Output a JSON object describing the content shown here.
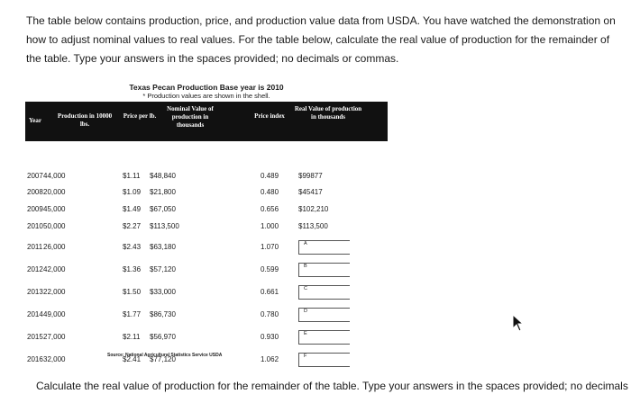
{
  "intro": {
    "line1": "The table below contains production, price, and production value data from USDA. You have watched the demonstration on",
    "line2": "how to adjust nominal values to real values.  For the table below, calculate the real value of production for the remainder of",
    "line3": "the table. Type your answers in the spaces provided; no decimals or commas."
  },
  "table": {
    "title": "Texas Pecan Production Base year is 2010",
    "subtitle": "* Production values are shown in the shell.",
    "headers": {
      "year": "Year",
      "production": "Production in 10000 lbs.",
      "price": "Price per lb.",
      "nominal": "Nominal Value of production in thousands",
      "price_index": "Price index",
      "real": "Real Value of production in thousands"
    },
    "rows": [
      {
        "year": "2007",
        "production": "44,000",
        "price": "$1.11",
        "nominal": "$48,840",
        "price_index": "0.489",
        "real": "$99877"
      },
      {
        "year": "2008",
        "production": "20,000",
        "price": "$1.09",
        "nominal": "$21,800",
        "price_index": "0.480",
        "real": "$45417"
      },
      {
        "year": "2009",
        "production": "45,000",
        "price": "$1.49",
        "nominal": "$67,050",
        "price_index": "0.656",
        "real": "$102,210"
      },
      {
        "year": "2010",
        "production": "50,000",
        "price": "$2.27",
        "nominal": "$113,500",
        "price_index": "1.000",
        "real": "$113,500"
      },
      {
        "year": "2011",
        "production": "26,000",
        "price": "$2.43",
        "nominal": "$63,180",
        "price_index": "1.070",
        "answer_label": "A"
      },
      {
        "year": "2012",
        "production": "42,000",
        "price": "$1.36",
        "nominal": "$57,120",
        "price_index": "0.599",
        "answer_label": "B"
      },
      {
        "year": "2013",
        "production": "22,000",
        "price": "$1.50",
        "nominal": "$33,000",
        "price_index": "0.661",
        "answer_label": "C"
      },
      {
        "year": "2014",
        "production": "49,000",
        "price": "$1.77",
        "nominal": "$86,730",
        "price_index": "0.780",
        "answer_label": "D"
      },
      {
        "year": "2015",
        "production": "27,000",
        "price": "$2.11",
        "nominal": "$56,970",
        "price_index": "0.930",
        "answer_label": "E"
      },
      {
        "year": "2016",
        "production": "32,000",
        "price": "$2.41",
        "nominal": "$77,120",
        "price_index": "1.062",
        "answer_label": "F"
      }
    ],
    "source": "Source: National Agricultural Statistics Service USDA"
  },
  "footer": "Calculate the real value of production for the remainder of the table. Type your answers in the spaces provided; no decimals"
}
